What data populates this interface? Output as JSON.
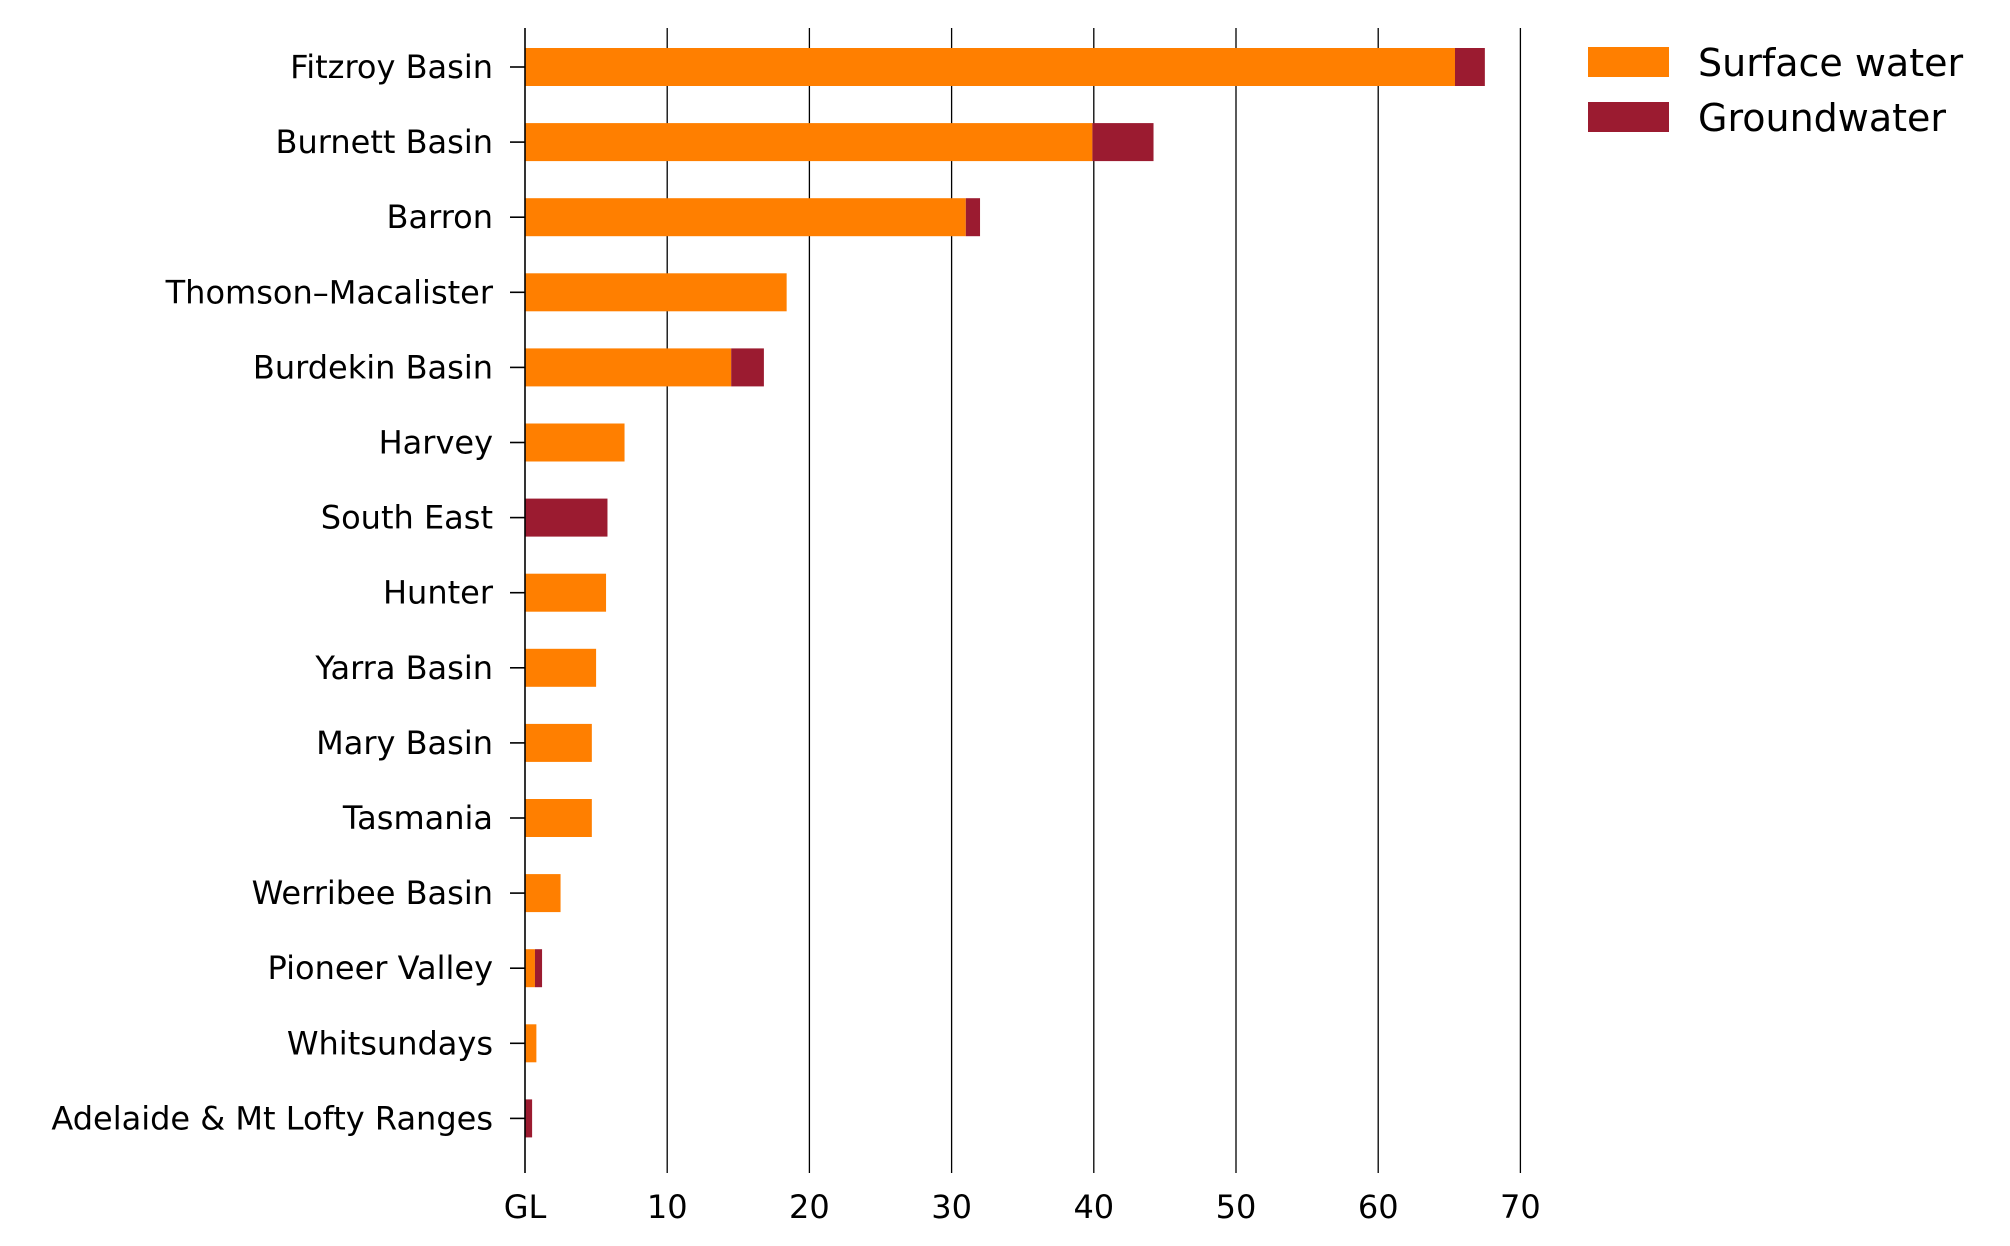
{
  "chart_data": {
    "type": "bar",
    "orientation": "horizontal",
    "stacked": true,
    "title": "",
    "xlabel": "",
    "ylabel": "",
    "x_unit_label": "GL",
    "xlim": [
      0,
      70
    ],
    "xticks": [
      10,
      20,
      30,
      40,
      50,
      60,
      70
    ],
    "grid": true,
    "legend_position": "top-right",
    "categories": [
      "Fitzroy Basin",
      "Burnett Basin",
      "Barron",
      "Thomson–Macalister",
      "Burdekin Basin",
      "Harvey",
      "South East",
      "Hunter",
      "Yarra Basin",
      "Mary Basin",
      "Tasmania",
      "Werribee Basin",
      "Pioneer Valley",
      "Whitsundays",
      "Adelaide & Mt Lofty Ranges"
    ],
    "series": [
      {
        "name": "Surface water",
        "color": "#ff7f00",
        "values": [
          65.4,
          39.9,
          31.0,
          18.4,
          14.5,
          7.0,
          0,
          5.7,
          5.0,
          4.7,
          4.7,
          2.5,
          0.7,
          0.8,
          0
        ]
      },
      {
        "name": "Groundwater",
        "color": "#9b1b30",
        "values": [
          2.1,
          4.3,
          1.0,
          0,
          2.3,
          0,
          5.8,
          0,
          0,
          0,
          0,
          0,
          0.5,
          0,
          0.5
        ]
      }
    ]
  }
}
